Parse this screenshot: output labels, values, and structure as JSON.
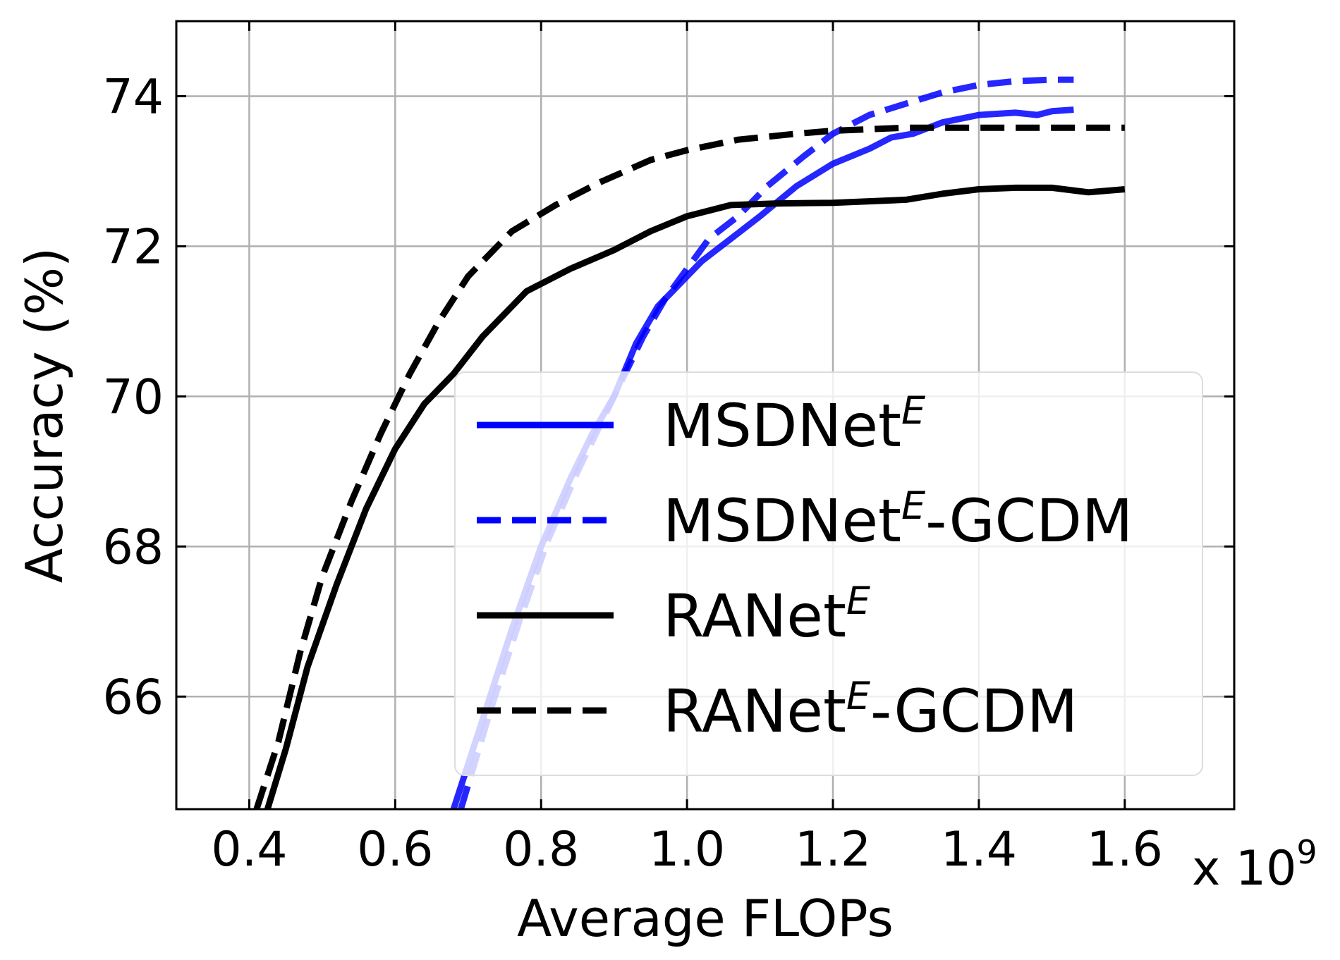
{
  "chart_data": {
    "type": "line",
    "title": "",
    "xlabel": "Average FLOPs",
    "ylabel": "Accuracy (%)",
    "x_multiplier_label": "x 10",
    "x_multiplier_exp": "9",
    "xlim": [
      0.3,
      1.75
    ],
    "ylim": [
      64.5,
      75.0
    ],
    "xticks": [
      0.4,
      0.6,
      0.8,
      1.0,
      1.2,
      1.4,
      1.6
    ],
    "xtick_labels": [
      "0.4",
      "0.6",
      "0.8",
      "1.0",
      "1.2",
      "1.4",
      "1.6"
    ],
    "yticks": [
      66,
      68,
      70,
      72,
      74
    ],
    "ytick_labels": [
      "66",
      "68",
      "70",
      "72",
      "74"
    ],
    "grid": true,
    "legend_position": "lower-right",
    "series": [
      {
        "name": "MSDNet",
        "name_sup": "E",
        "name_suffix": "",
        "color": "#0000ff",
        "dash": "solid",
        "x": [
          0.68,
          0.72,
          0.76,
          0.8,
          0.84,
          0.87,
          0.9,
          0.93,
          0.96,
          0.99,
          1.02,
          1.06,
          1.1,
          1.15,
          1.2,
          1.25,
          1.28,
          1.31,
          1.35,
          1.4,
          1.45,
          1.48,
          1.5,
          1.53
        ],
        "y": [
          64.5,
          65.7,
          66.9,
          68.0,
          68.9,
          69.5,
          70.0,
          70.7,
          71.2,
          71.5,
          71.8,
          72.1,
          72.4,
          72.8,
          73.1,
          73.3,
          73.45,
          73.5,
          73.65,
          73.75,
          73.78,
          73.75,
          73.8,
          73.82
        ]
      },
      {
        "name": "MSDNet",
        "name_sup": "E",
        "name_suffix": "-GCDM",
        "color": "#0000ff",
        "dash": "dashed",
        "x": [
          0.69,
          0.73,
          0.77,
          0.81,
          0.85,
          0.88,
          0.91,
          0.94,
          0.97,
          1.0,
          1.03,
          1.07,
          1.11,
          1.16,
          1.2,
          1.25,
          1.3,
          1.35,
          1.4,
          1.45,
          1.5,
          1.53
        ],
        "y": [
          64.5,
          65.8,
          67.0,
          68.1,
          69.0,
          69.6,
          70.2,
          70.8,
          71.3,
          71.7,
          72.1,
          72.4,
          72.8,
          73.2,
          73.5,
          73.75,
          73.9,
          74.05,
          74.15,
          74.2,
          74.22,
          74.22
        ]
      },
      {
        "name": "RANet",
        "name_sup": "E",
        "name_suffix": "",
        "color": "#000000",
        "dash": "solid",
        "x": [
          0.425,
          0.45,
          0.48,
          0.52,
          0.56,
          0.6,
          0.64,
          0.68,
          0.72,
          0.78,
          0.84,
          0.9,
          0.95,
          1.0,
          1.06,
          1.12,
          1.2,
          1.3,
          1.35,
          1.4,
          1.45,
          1.5,
          1.55,
          1.6
        ],
        "y": [
          64.5,
          65.3,
          66.4,
          67.5,
          68.5,
          69.3,
          69.9,
          70.3,
          70.8,
          71.4,
          71.7,
          71.95,
          72.2,
          72.4,
          72.55,
          72.57,
          72.58,
          72.62,
          72.7,
          72.76,
          72.78,
          72.78,
          72.72,
          72.76
        ]
      },
      {
        "name": "RANet",
        "name_sup": "E",
        "name_suffix": "-GCDM",
        "color": "#000000",
        "dash": "dashed",
        "x": [
          0.41,
          0.44,
          0.47,
          0.5,
          0.54,
          0.58,
          0.62,
          0.66,
          0.7,
          0.76,
          0.82,
          0.88,
          0.95,
          1.0,
          1.07,
          1.15,
          1.2,
          1.3,
          1.4,
          1.5,
          1.6
        ],
        "y": [
          64.5,
          65.4,
          66.6,
          67.6,
          68.6,
          69.5,
          70.3,
          71.0,
          71.6,
          72.2,
          72.55,
          72.85,
          73.15,
          73.28,
          73.42,
          73.5,
          73.54,
          73.58,
          73.58,
          73.58,
          73.58
        ]
      }
    ]
  }
}
